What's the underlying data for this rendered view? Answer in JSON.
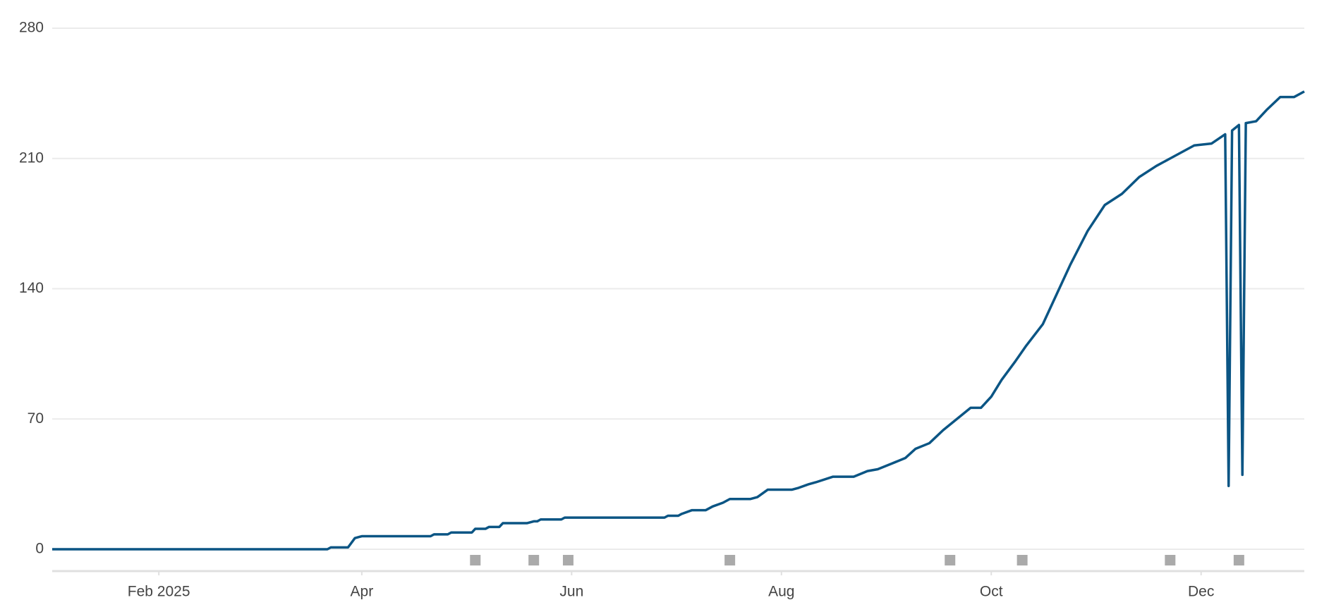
{
  "chart_data": {
    "type": "line",
    "x": [
      1,
      81,
      82,
      87,
      89,
      91,
      111,
      112,
      116,
      117,
      123,
      124,
      127,
      128,
      131,
      132,
      139,
      141,
      142,
      143,
      149,
      150,
      179,
      180,
      183,
      184,
      187,
      191,
      193,
      196,
      198,
      204,
      206,
      209,
      216,
      218,
      221,
      223,
      228,
      234,
      238,
      241,
      245,
      249,
      252,
      256,
      260,
      264,
      268,
      271,
      274,
      277,
      281,
      284,
      289,
      293,
      297,
      302,
      307,
      312,
      317,
      322,
      326,
      333,
      338,
      342,
      343,
      344,
      346,
      347,
      348,
      351,
      354,
      358,
      362,
      365
    ],
    "series": [
      {
        "color": "#0b5584",
        "values": [
          0,
          0,
          1,
          1,
          6,
          7,
          7,
          8,
          8,
          9,
          9,
          11,
          11,
          12,
          12,
          14,
          14,
          15,
          15,
          16,
          16,
          17,
          17,
          18,
          18,
          19,
          21,
          21,
          23,
          25,
          27,
          27,
          28,
          32,
          32,
          33,
          35,
          36,
          39,
          39,
          42,
          43,
          46,
          49,
          54,
          57,
          64,
          70,
          76,
          76,
          82,
          91,
          101,
          109,
          121,
          137,
          153,
          171,
          185,
          191,
          200,
          206,
          210,
          217,
          218,
          223,
          34,
          225,
          228,
          40,
          229,
          230,
          236,
          243,
          243,
          246
        ]
      }
    ],
    "markers": [
      124,
      141,
      151,
      198,
      262,
      283,
      326,
      346
    ],
    "marker_color": "#aaaaaa",
    "xlim": [
      1,
      365
    ],
    "xticks": [
      {
        "value": 32,
        "label": "Feb 2025"
      },
      {
        "value": 91,
        "label": "Apr"
      },
      {
        "value": 152,
        "label": "Jun"
      },
      {
        "value": 213,
        "label": "Aug"
      },
      {
        "value": 274,
        "label": "Oct"
      },
      {
        "value": 335,
        "label": "Dec"
      }
    ],
    "ylim": [
      0,
      280
    ],
    "yticks": [
      0,
      70,
      140,
      210,
      280
    ],
    "grid": true
  }
}
